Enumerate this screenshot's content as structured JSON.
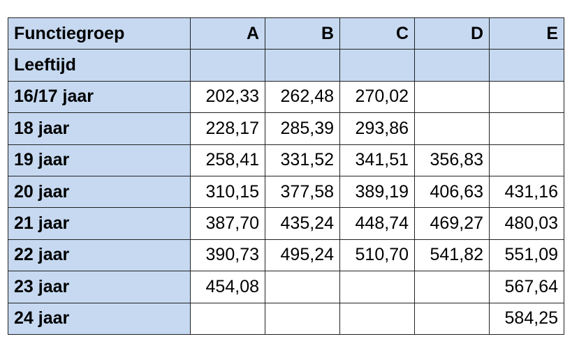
{
  "header": {
    "title": "Functiegroep",
    "columns": [
      "A",
      "B",
      "C",
      "D",
      "E"
    ]
  },
  "subheader": {
    "title": "Leeftijd"
  },
  "rows": [
    {
      "label": "16/17 jaar",
      "values": [
        "202,33",
        "262,48",
        "270,02",
        "",
        ""
      ]
    },
    {
      "label": "18 jaar",
      "values": [
        "228,17",
        "285,39",
        "293,86",
        "",
        ""
      ]
    },
    {
      "label": "19 jaar",
      "values": [
        "258,41",
        "331,52",
        "341,51",
        "356,83",
        ""
      ]
    },
    {
      "label": "20 jaar",
      "values": [
        "310,15",
        "377,58",
        "389,19",
        "406,63",
        "431,16"
      ]
    },
    {
      "label": "21 jaar",
      "values": [
        "387,70",
        "435,24",
        "448,74",
        "469,27",
        "480,03"
      ]
    },
    {
      "label": "22 jaar",
      "values": [
        "390,73",
        "495,24",
        "510,70",
        "541,82",
        "551,09"
      ]
    },
    {
      "label": "23 jaar",
      "values": [
        "454,08",
        "",
        "",
        "",
        "567,64"
      ]
    },
    {
      "label": "24 jaar",
      "values": [
        "",
        "",
        "",
        "",
        "584,25"
      ]
    }
  ],
  "colors": {
    "header_fill": "#c6d9f1",
    "border": "#222222"
  }
}
